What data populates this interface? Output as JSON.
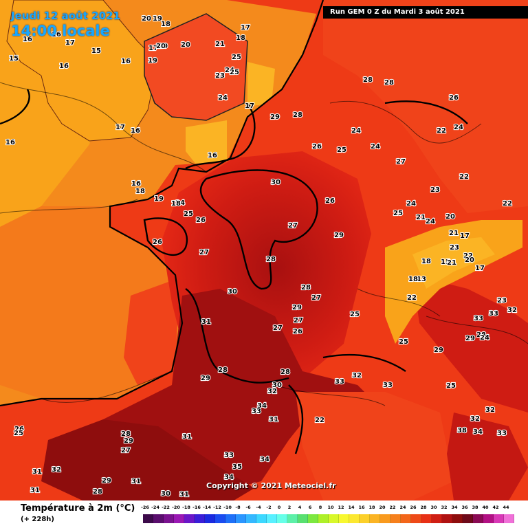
{
  "header": {
    "date": "Jeudi 12 août 2021",
    "time": "14:00 locale",
    "run": "Run GEM 0 Z du Mardi 3 août 2021"
  },
  "map": {
    "type": "2m temperature forecast",
    "colors": {
      "sea_cool": "#f9a31a",
      "sea_warm": "#f36d1a",
      "land_hot": "#ee3a16",
      "land_very_hot": "#c41812",
      "land_extreme": "#8e0d0d",
      "coast_line": "#000000"
    },
    "temperature_values": [
      "20",
      "19",
      "18",
      "17",
      "20",
      "20",
      "21",
      "18",
      "16",
      "16",
      "15",
      "16",
      "15",
      "19",
      "16",
      "17",
      "20",
      "25",
      "24",
      "23",
      "24",
      "17",
      "25",
      "16",
      "17",
      "16",
      "16",
      "16",
      "18",
      "19",
      "24",
      "17",
      "26",
      "25",
      "18",
      "26",
      "27",
      "29",
      "28",
      "26",
      "25",
      "24",
      "28",
      "24",
      "27",
      "30",
      "26",
      "27",
      "29",
      "28",
      "30",
      "28",
      "29",
      "27",
      "25",
      "27",
      "26",
      "27",
      "31",
      "29",
      "28",
      "32",
      "30",
      "28",
      "33",
      "32",
      "33",
      "34",
      "33",
      "31",
      "22",
      "28",
      "29",
      "27",
      "31",
      "33",
      "34",
      "35",
      "34",
      "29",
      "31",
      "30",
      "31",
      "32",
      "31",
      "31",
      "26",
      "25",
      "28",
      "28",
      "26",
      "24",
      "22",
      "22",
      "23",
      "24",
      "25",
      "24",
      "21",
      "20",
      "21",
      "22",
      "23",
      "22",
      "18",
      "15",
      "13",
      "20",
      "18",
      "17",
      "17",
      "21",
      "22",
      "23",
      "33",
      "32",
      "33",
      "28",
      "29",
      "29",
      "24",
      "25",
      "25",
      "32",
      "32",
      "33",
      "34",
      "38"
    ]
  },
  "copyright": "Copyright © 2021 Meteociel.fr",
  "legend": {
    "title": "Température à 2m (°C)",
    "subtitle": "(+ 228h)",
    "scale_labels": [
      "-26",
      "-24",
      "-22",
      "-20",
      "-18",
      "-16",
      "-14",
      "-12",
      "-10",
      "-8",
      "-6",
      "-4",
      "-2",
      "0",
      "2",
      "4",
      "6",
      "8",
      "10",
      "12",
      "14",
      "16",
      "18",
      "20",
      "22",
      "24",
      "26",
      "28",
      "30",
      "32",
      "34",
      "36",
      "38",
      "40",
      "42",
      "44"
    ],
    "scale_colors": [
      "#3c0a4a",
      "#5a0e6e",
      "#7a1290",
      "#9a18b4",
      "#6a16c8",
      "#3a1ed8",
      "#1a2ae0",
      "#1a4cf0",
      "#1e70f8",
      "#2a96ff",
      "#34b8ff",
      "#3cd8ff",
      "#58f0ff",
      "#66ffe8",
      "#5cf0a8",
      "#58e070",
      "#7ce840",
      "#aef028",
      "#d8f82a",
      "#f8f830",
      "#fce830",
      "#fcd02a",
      "#fbb424",
      "#f99a1e",
      "#f6801c",
      "#f3661a",
      "#ee4a18",
      "#e83016",
      "#d01e14",
      "#b01212",
      "#8e0d0d",
      "#6e0a1a",
      "#8a0a54",
      "#b21084",
      "#d838b6",
      "#f070d8"
    ]
  }
}
